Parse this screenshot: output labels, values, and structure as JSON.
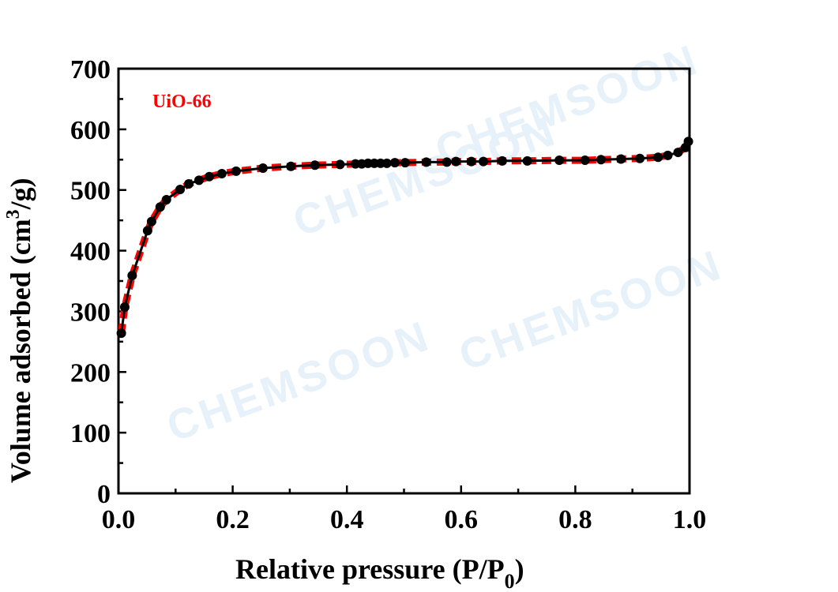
{
  "watermark": "CHEMSOON",
  "chart_data": {
    "type": "line",
    "title": "",
    "xlabel": "Relative pressure  (P/P",
    "xlabel_sub": "0",
    "xlabel_end": ")",
    "ylabel": "Volume adsorbed (cm",
    "ylabel_sup": "3",
    "ylabel_end": "/g)",
    "xlim": [
      0,
      1.0
    ],
    "ylim": [
      0,
      700
    ],
    "xticks": [
      "0.0",
      "0.2",
      "0.4",
      "0.6",
      "0.8",
      "1.0"
    ],
    "xtick_values": [
      0,
      0.2,
      0.4,
      0.6,
      0.8,
      1.0
    ],
    "yticks": [
      "0",
      "100",
      "200",
      "300",
      "400",
      "500",
      "600",
      "700"
    ],
    "ytick_values": [
      0,
      100,
      200,
      300,
      400,
      500,
      600,
      700
    ],
    "grid": false,
    "legend": {
      "text": "UiO-66",
      "placement": "top-left",
      "color": "#ff0000"
    },
    "colors": {
      "markers": "#000000",
      "dashed": "#ff0000"
    },
    "x": [
      0.005,
      0.011,
      0.024,
      0.051,
      0.058,
      0.073,
      0.084,
      0.108,
      0.123,
      0.141,
      0.159,
      0.181,
      0.206,
      0.253,
      0.302,
      0.344,
      0.388,
      0.415,
      0.426,
      0.437,
      0.448,
      0.459,
      0.47,
      0.484,
      0.502,
      0.539,
      0.575,
      0.591,
      0.618,
      0.639,
      0.672,
      0.716,
      0.772,
      0.817,
      0.845,
      0.88,
      0.913,
      0.945,
      0.962,
      0.98,
      0.993,
      0.998
    ],
    "y": [
      264,
      307,
      359,
      433,
      448,
      472,
      484,
      501,
      510,
      516,
      522,
      527,
      531,
      536,
      539,
      541,
      542,
      543,
      543,
      544,
      544,
      544,
      544,
      545,
      545,
      546,
      546,
      547,
      547,
      547,
      548,
      548,
      549,
      549,
      550,
      551,
      552,
      554,
      557,
      562,
      570,
      580
    ]
  }
}
